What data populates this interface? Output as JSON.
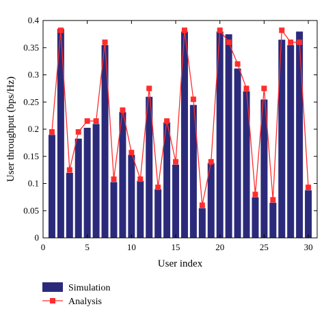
{
  "chart_data": {
    "type": "bar",
    "xlabel": "User index",
    "ylabel": "User throughput (bps/Hz)",
    "xlim": [
      0,
      31
    ],
    "ylim": [
      0,
      0.4
    ],
    "xticks": [
      "0",
      "5",
      "10",
      "15",
      "20",
      "25",
      "30"
    ],
    "yticks": [
      "0",
      "0.05",
      "0.1",
      "0.15",
      "0.2",
      "0.25",
      "0.3",
      "0.35",
      "0.4"
    ],
    "x": [
      1,
      2,
      3,
      4,
      5,
      6,
      7,
      8,
      9,
      10,
      11,
      12,
      13,
      14,
      15,
      16,
      17,
      18,
      19,
      20,
      21,
      22,
      23,
      24,
      25,
      26,
      27,
      28,
      29,
      30
    ],
    "legend": {
      "position": "bottom-left"
    },
    "series": [
      {
        "name": "Simulation",
        "type": "bar",
        "color": "#2b2a7a",
        "values": [
          0.19,
          0.385,
          0.12,
          0.183,
          0.203,
          0.21,
          0.355,
          0.103,
          0.232,
          0.153,
          0.105,
          0.26,
          0.09,
          0.213,
          0.135,
          0.38,
          0.245,
          0.055,
          0.138,
          0.38,
          0.375,
          0.312,
          0.27,
          0.075,
          0.255,
          0.065,
          0.365,
          0.355,
          0.38,
          0.088
        ]
      },
      {
        "name": "Analysis",
        "type": "line",
        "color": "#ff2d2d",
        "values": [
          0.195,
          0.382,
          0.125,
          0.195,
          0.215,
          0.215,
          0.36,
          0.108,
          0.235,
          0.157,
          0.108,
          0.275,
          0.093,
          0.215,
          0.14,
          0.382,
          0.255,
          0.06,
          0.14,
          0.382,
          0.36,
          0.32,
          0.275,
          0.08,
          0.275,
          0.07,
          0.382,
          0.36,
          0.36,
          0.093
        ]
      }
    ]
  }
}
